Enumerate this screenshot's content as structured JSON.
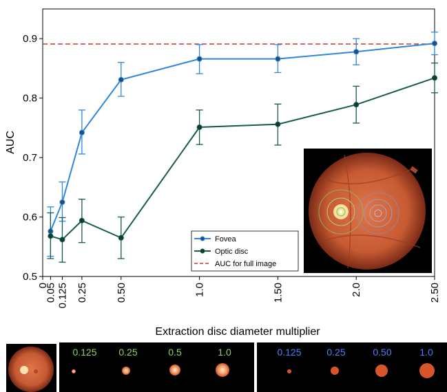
{
  "chart_data": {
    "type": "line",
    "xlabel": "Extraction disc diameter multiplier",
    "ylabel": "AUC",
    "xlim": [
      0,
      2.5
    ],
    "ylim": [
      0.5,
      0.95
    ],
    "x_ticks": [
      0,
      0.05,
      0.125,
      0.25,
      0.5,
      1.0,
      1.5,
      2.0,
      2.5
    ],
    "x_tick_labels": [
      "0",
      "0.05",
      "0.125",
      "0.25",
      "0.50",
      "1.0",
      "1.50",
      "2.0",
      "2.50"
    ],
    "y_ticks": [
      0.5,
      0.6,
      0.7,
      0.8,
      0.9
    ],
    "y_tick_labels": [
      "0.5",
      "0.6",
      "0.7",
      "0.8",
      "0.9"
    ],
    "x": [
      0.05,
      0.125,
      0.25,
      0.5,
      1.0,
      1.5,
      2.0,
      2.5
    ],
    "series": [
      {
        "name": "Fovea",
        "color": "#2e86de",
        "values": [
          0.576,
          0.625,
          0.742,
          0.831,
          0.866,
          0.866,
          0.878,
          0.892
        ],
        "err_low": [
          0.534,
          0.593,
          0.706,
          0.803,
          0.841,
          0.843,
          0.856,
          0.873
        ],
        "err_high": [
          0.617,
          0.659,
          0.78,
          0.86,
          0.89,
          0.89,
          0.9,
          0.911
        ]
      },
      {
        "name": "Optic disc",
        "color": "#155a4c",
        "values": [
          0.568,
          0.562,
          0.594,
          0.565,
          0.751,
          0.756,
          0.789,
          0.834
        ],
        "err_low": [
          0.53,
          0.524,
          0.557,
          0.53,
          0.722,
          0.721,
          0.758,
          0.809
        ],
        "err_high": [
          0.607,
          0.599,
          0.63,
          0.6,
          0.78,
          0.79,
          0.82,
          0.859
        ]
      }
    ],
    "reference_line": {
      "name": "AUC for full image",
      "value": 0.891,
      "color": "#c0392b",
      "style": "dashed"
    },
    "legend": {
      "placement": "lower-center",
      "entries": [
        "Fovea",
        "Optic disc",
        "AUC for full image"
      ]
    },
    "grid": false
  },
  "inset": {
    "description_icon": "fundus-inset-icon"
  },
  "strip": {
    "green_labels": [
      "0.125",
      "0.25",
      "0.5",
      "1.0"
    ],
    "blue_labels": [
      "0.125",
      "0.25",
      "0.50",
      "1.0"
    ],
    "green_color": "#8fd16a",
    "blue_color": "#4f7dff"
  }
}
